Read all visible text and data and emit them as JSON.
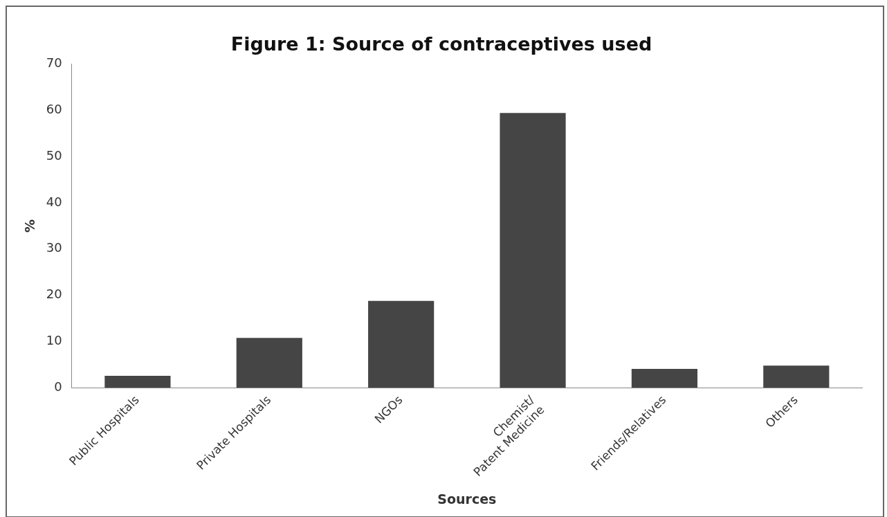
{
  "chart_data": {
    "type": "bar",
    "title": "Figure 1: Source of contraceptives used",
    "xlabel": "Sources",
    "ylabel": "%",
    "categories": [
      "Public Hospitals",
      "Private Hospitals",
      "NGOs",
      "Chemist/\nPatent Medicine",
      "Friends/Relatives",
      "Others"
    ],
    "values": [
      2.6,
      10.8,
      18.8,
      59.4,
      4.1,
      4.8
    ],
    "color": "#454545",
    "ylim": [
      0,
      70
    ],
    "yticks": [
      0,
      10,
      20,
      30,
      40,
      50,
      60,
      70
    ],
    "grid": false,
    "legend": false
  }
}
